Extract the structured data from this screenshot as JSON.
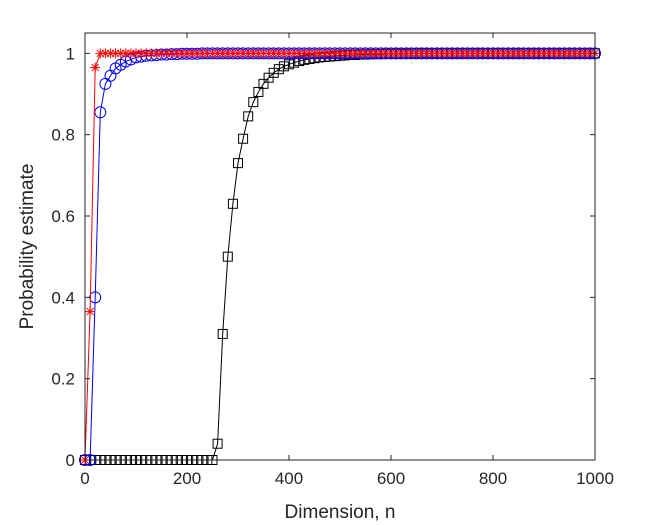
{
  "chart_data": {
    "type": "line",
    "title": "",
    "xlabel": "Dimension, n",
    "ylabel": "Probability estimate",
    "xlim": [
      0,
      1000
    ],
    "ylim": [
      0,
      1.05
    ],
    "grid": false,
    "legend": "none",
    "xticks": [
      0,
      200,
      400,
      600,
      800,
      1000
    ],
    "xtick_labels": [
      "0",
      "200",
      "400",
      "600",
      "800",
      "1000"
    ],
    "yticks": [
      0,
      0.2,
      0.4,
      0.6,
      0.8,
      1
    ],
    "ytick_labels": [
      "0",
      "0.2",
      "0.4",
      "0.6",
      "0.8",
      "1"
    ],
    "series": [
      {
        "color": "#000000",
        "marker": "square",
        "x": [
          0,
          10,
          20,
          30,
          40,
          50,
          60,
          70,
          80,
          90,
          100,
          110,
          120,
          130,
          140,
          150,
          160,
          170,
          180,
          190,
          200,
          210,
          220,
          230,
          240,
          250,
          260,
          270,
          280,
          290,
          300,
          310,
          320,
          330,
          340,
          350,
          360,
          370,
          380,
          390,
          400,
          410,
          420,
          430,
          440,
          450,
          460,
          470,
          480,
          490,
          500,
          510,
          520,
          530,
          540,
          550,
          560,
          570,
          580,
          590,
          600,
          610,
          620,
          630,
          640,
          650,
          660,
          670,
          680,
          690,
          700,
          710,
          720,
          730,
          740,
          750,
          760,
          770,
          780,
          790,
          800,
          810,
          820,
          830,
          840,
          850,
          860,
          870,
          880,
          890,
          900,
          910,
          920,
          930,
          940,
          950,
          960,
          970,
          980,
          990,
          1000
        ],
        "values": [
          0,
          0,
          0,
          0,
          0,
          0,
          0,
          0,
          0,
          0,
          0,
          0,
          0,
          0,
          0,
          0,
          0,
          0,
          0,
          0,
          0,
          0,
          0,
          0,
          0,
          0,
          0.04,
          0.31,
          0.5,
          0.63,
          0.73,
          0.79,
          0.845,
          0.88,
          0.905,
          0.925,
          0.94,
          0.952,
          0.961,
          0.968,
          0.973,
          0.977,
          0.981,
          0.984,
          0.986,
          0.988,
          0.99,
          0.991,
          0.992,
          0.993,
          0.994,
          0.995,
          0.996,
          0.996,
          0.997,
          0.997,
          0.998,
          0.998,
          0.998,
          0.999,
          0.999,
          0.999,
          0.999,
          0.999,
          1,
          1,
          1,
          1,
          1,
          1,
          1,
          1,
          1,
          1,
          1,
          1,
          1,
          1,
          1,
          1,
          1,
          1,
          1,
          1,
          1,
          1,
          1,
          1,
          1,
          1,
          1,
          1,
          1,
          1,
          1,
          1,
          1,
          1,
          1,
          1,
          1
        ]
      },
      {
        "color": "#0000ff",
        "marker": "circle",
        "x": [
          0,
          10,
          20,
          30,
          40,
          50,
          60,
          70,
          80,
          90,
          100,
          110,
          120,
          130,
          140,
          150,
          160,
          170,
          180,
          190,
          200,
          210,
          220,
          230,
          240,
          250,
          260,
          270,
          280,
          290,
          300,
          310,
          320,
          330,
          340,
          350,
          360,
          370,
          380,
          390,
          400,
          410,
          420,
          430,
          440,
          450,
          460,
          470,
          480,
          490,
          500,
          510,
          520,
          530,
          540,
          550,
          560,
          570,
          580,
          590,
          600,
          610,
          620,
          630,
          640,
          650,
          660,
          670,
          680,
          690,
          700,
          710,
          720,
          730,
          740,
          750,
          760,
          770,
          780,
          790,
          800,
          810,
          820,
          830,
          840,
          850,
          860,
          870,
          880,
          890,
          900,
          910,
          920,
          930,
          940,
          950,
          960,
          970,
          980,
          990,
          1000
        ],
        "values": [
          0,
          0,
          0.4,
          0.855,
          0.925,
          0.945,
          0.963,
          0.972,
          0.98,
          0.985,
          0.99,
          0.992,
          0.994,
          0.995,
          0.996,
          0.997,
          0.997,
          0.998,
          0.998,
          0.999,
          0.999,
          0.999,
          0.999,
          1,
          1,
          1,
          1,
          1,
          1,
          1,
          1,
          1,
          1,
          1,
          1,
          1,
          1,
          1,
          1,
          1,
          1,
          1,
          1,
          1,
          1,
          1,
          1,
          1,
          1,
          1,
          1,
          1,
          1,
          1,
          1,
          1,
          1,
          1,
          1,
          1,
          1,
          1,
          1,
          1,
          1,
          1,
          1,
          1,
          1,
          1,
          1,
          1,
          1,
          1,
          1,
          1,
          1,
          1,
          1,
          1,
          1,
          1,
          1,
          1,
          1,
          1,
          1,
          1,
          1,
          1,
          1,
          1,
          1,
          1,
          1,
          1,
          1,
          1,
          1,
          1,
          1
        ]
      },
      {
        "color": "#ff0000",
        "marker": "asterisk",
        "x": [
          0,
          10,
          20,
          30,
          40,
          50,
          60,
          70,
          80,
          90,
          100,
          110,
          120,
          130,
          140,
          150,
          160,
          170,
          180,
          190,
          200,
          210,
          220,
          230,
          240,
          250,
          260,
          270,
          280,
          290,
          300,
          310,
          320,
          330,
          340,
          350,
          360,
          370,
          380,
          390,
          400,
          410,
          420,
          430,
          440,
          450,
          460,
          470,
          480,
          490,
          500,
          510,
          520,
          530,
          540,
          550,
          560,
          570,
          580,
          590,
          600,
          610,
          620,
          630,
          640,
          650,
          660,
          670,
          680,
          690,
          700,
          710,
          720,
          730,
          740,
          750,
          760,
          770,
          780,
          790,
          800,
          810,
          820,
          830,
          840,
          850,
          860,
          870,
          880,
          890,
          900,
          910,
          920,
          930,
          940,
          950,
          960,
          970,
          980,
          990,
          1000
        ],
        "values": [
          0,
          0.365,
          0.965,
          1,
          1,
          1,
          1,
          1,
          1,
          1,
          1,
          1,
          1,
          1,
          1,
          1,
          1,
          1,
          1,
          1,
          1,
          1,
          1,
          1,
          1,
          1,
          1,
          1,
          1,
          1,
          1,
          1,
          1,
          1,
          1,
          1,
          1,
          1,
          1,
          1,
          1,
          1,
          1,
          1,
          1,
          1,
          1,
          1,
          1,
          1,
          1,
          1,
          1,
          1,
          1,
          1,
          1,
          1,
          1,
          1,
          1,
          1,
          1,
          1,
          1,
          1,
          1,
          1,
          1,
          1,
          1,
          1,
          1,
          1,
          1,
          1,
          1,
          1,
          1,
          1,
          1,
          1,
          1,
          1,
          1,
          1,
          1,
          1,
          1,
          1,
          1,
          1,
          1,
          1,
          1,
          1,
          1,
          1,
          1,
          1,
          1
        ]
      }
    ]
  }
}
